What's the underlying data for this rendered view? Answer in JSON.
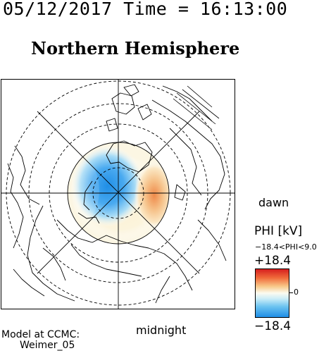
{
  "header": {
    "time_text": "05/12/2017 Time = 16:13:00"
  },
  "plot": {
    "title": "Northern Hemisphere",
    "dawn_label": "dawn",
    "midnight_label": "midnight"
  },
  "legend": {
    "title": "PHI [kV]",
    "range_text": "−18.4<PHI<9.0",
    "max_label": "+18.4",
    "zero_label": "0",
    "min_label": "−18.4",
    "colors": {
      "positive": "#d61f1f",
      "neutral": "#fcfbf0",
      "negative": "#1f8ee6"
    }
  },
  "credit": {
    "line1": "Model at CCMC:",
    "line2": "Weimer_05"
  },
  "map": {
    "projection": "north-polar-stereographic",
    "center": "north-pole"
  }
}
